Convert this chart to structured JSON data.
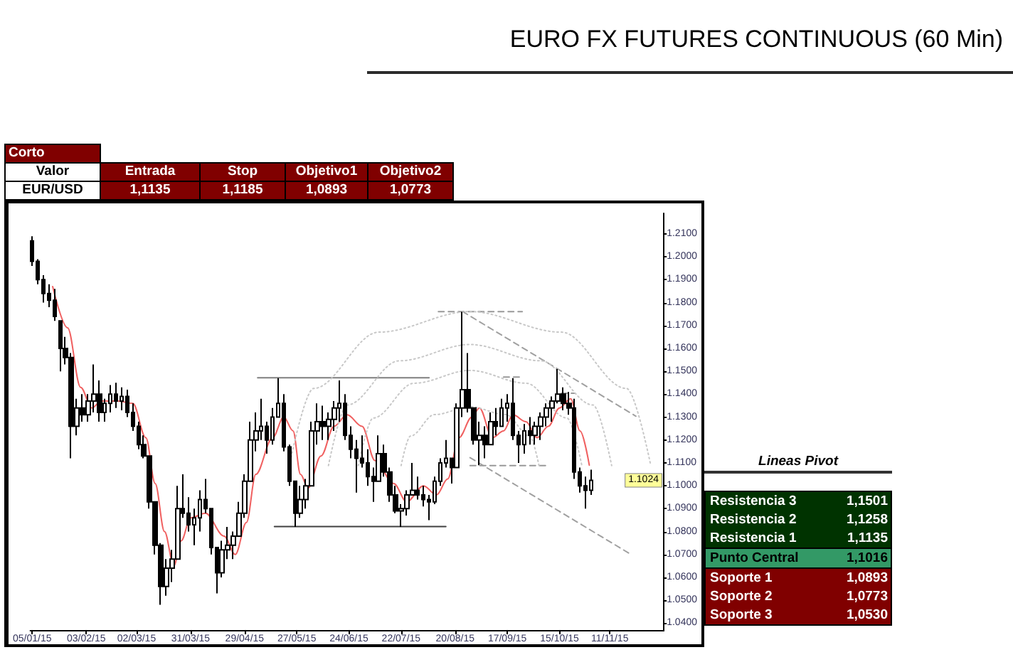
{
  "chart_data": [
    {
      "type": "other",
      "title": "Corto",
      "categories": [
        "Entrada",
        "Stop",
        "Objetivo1",
        "Objetivo2"
      ],
      "value_labels": [
        "1,1135",
        "1,1185",
        "1,0893",
        "1,0773"
      ],
      "color": "#800000",
      "annotations": [
        "Valor",
        "EUR/USD"
      ]
    },
    {
      "type": "candlestick",
      "title": "EURO FX FUTURES CONTINUOUS (60 Min)",
      "color": "#000000",
      "marker": "none",
      "x": [
        "2015-01-05",
        "2015-01-08",
        "2015-01-11",
        "2015-01-14",
        "2015-01-17",
        "2015-01-20",
        "2015-01-23",
        "2015-01-26",
        "2015-01-29",
        "2015-02-01",
        "2015-02-04",
        "2015-02-07",
        "2015-02-10",
        "2015-02-13",
        "2015-02-16",
        "2015-02-19",
        "2015-02-22",
        "2015-02-25",
        "2015-02-28",
        "2015-03-03",
        "2015-03-06",
        "2015-03-09",
        "2015-03-12",
        "2015-03-15",
        "2015-03-18",
        "2015-03-21",
        "2015-03-24",
        "2015-03-27",
        "2015-03-30",
        "2015-04-02",
        "2015-04-05",
        "2015-04-08",
        "2015-04-11",
        "2015-04-14",
        "2015-04-17",
        "2015-04-20",
        "2015-04-23",
        "2015-04-26",
        "2015-04-29",
        "2015-05-02",
        "2015-05-05",
        "2015-05-08",
        "2015-05-11",
        "2015-05-14",
        "2015-05-17",
        "2015-05-20",
        "2015-05-23",
        "2015-05-26",
        "2015-05-29",
        "2015-06-01",
        "2015-06-04",
        "2015-06-07",
        "2015-06-10",
        "2015-06-13",
        "2015-06-16",
        "2015-06-19",
        "2015-06-22",
        "2015-06-25",
        "2015-06-28",
        "2015-07-01",
        "2015-07-04",
        "2015-07-07",
        "2015-07-10",
        "2015-07-13",
        "2015-07-16",
        "2015-07-19",
        "2015-07-22",
        "2015-07-25",
        "2015-07-28",
        "2015-07-31",
        "2015-08-03",
        "2015-08-06",
        "2015-08-09",
        "2015-08-12",
        "2015-08-15",
        "2015-08-18",
        "2015-08-21",
        "2015-08-24",
        "2015-08-27",
        "2015-08-30",
        "2015-09-02",
        "2015-09-05",
        "2015-09-08",
        "2015-09-11",
        "2015-09-14",
        "2015-09-17",
        "2015-09-20",
        "2015-09-23",
        "2015-09-26",
        "2015-09-29",
        "2015-10-02",
        "2015-10-05",
        "2015-10-08",
        "2015-10-11",
        "2015-10-14",
        "2015-10-17",
        "2015-10-20",
        "2015-10-23",
        "2015-10-26",
        "2015-10-29",
        "2015-11-01"
      ],
      "ohlc": [
        [
          1.207,
          1.209,
          1.196,
          1.198
        ],
        [
          1.198,
          1.199,
          1.188,
          1.19
        ],
        [
          1.19,
          1.192,
          1.18,
          1.184
        ],
        [
          1.184,
          1.188,
          1.178,
          1.181
        ],
        [
          1.181,
          1.186,
          1.172,
          1.174
        ],
        [
          1.172,
          1.172,
          1.15,
          1.16
        ],
        [
          1.16,
          1.165,
          1.153,
          1.156
        ],
        [
          1.156,
          1.158,
          1.112,
          1.126
        ],
        [
          1.126,
          1.138,
          1.122,
          1.134
        ],
        [
          1.134,
          1.14,
          1.128,
          1.131
        ],
        [
          1.131,
          1.14,
          1.128,
          1.137
        ],
        [
          1.137,
          1.153,
          1.132,
          1.14
        ],
        [
          1.14,
          1.146,
          1.128,
          1.132
        ],
        [
          1.132,
          1.138,
          1.128,
          1.136
        ],
        [
          1.136,
          1.144,
          1.132,
          1.14
        ],
        [
          1.14,
          1.145,
          1.134,
          1.137
        ],
        [
          1.137,
          1.143,
          1.133,
          1.139
        ],
        [
          1.139,
          1.142,
          1.13,
          1.132
        ],
        [
          1.132,
          1.136,
          1.124,
          1.126
        ],
        [
          1.126,
          1.128,
          1.116,
          1.118
        ],
        [
          1.118,
          1.122,
          1.112,
          1.113
        ],
        [
          1.113,
          1.113,
          1.09,
          1.093
        ],
        [
          1.093,
          1.093,
          1.07,
          1.074
        ],
        [
          1.074,
          1.075,
          1.048,
          1.056
        ],
        [
          1.056,
          1.068,
          1.052,
          1.064
        ],
        [
          1.064,
          1.072,
          1.058,
          1.068
        ],
        [
          1.068,
          1.1,
          1.068,
          1.09
        ],
        [
          1.09,
          1.105,
          1.086,
          1.088
        ],
        [
          1.088,
          1.095,
          1.08,
          1.083
        ],
        [
          1.083,
          1.09,
          1.074,
          1.086
        ],
        [
          1.086,
          1.098,
          1.08,
          1.094
        ],
        [
          1.094,
          1.103,
          1.088,
          1.09
        ],
        [
          1.09,
          1.09,
          1.07,
          1.073
        ],
        [
          1.073,
          1.073,
          1.053,
          1.062
        ],
        [
          1.062,
          1.076,
          1.06,
          1.072
        ],
        [
          1.072,
          1.082,
          1.068,
          1.074
        ],
        [
          1.074,
          1.08,
          1.068,
          1.078
        ],
        [
          1.078,
          1.093,
          1.078,
          1.088
        ],
        [
          1.088,
          1.105,
          1.086,
          1.102
        ],
        [
          1.102,
          1.128,
          1.102,
          1.12
        ],
        [
          1.12,
          1.132,
          1.115,
          1.124
        ],
        [
          1.124,
          1.138,
          1.12,
          1.126
        ],
        [
          1.126,
          1.128,
          1.114,
          1.12
        ],
        [
          1.12,
          1.134,
          1.118,
          1.13
        ],
        [
          1.13,
          1.147,
          1.13,
          1.136
        ],
        [
          1.136,
          1.14,
          1.115,
          1.117
        ],
        [
          1.117,
          1.118,
          1.1,
          1.102
        ],
        [
          1.102,
          1.102,
          1.082,
          1.088
        ],
        [
          1.088,
          1.1,
          1.086,
          1.094
        ],
        [
          1.094,
          1.103,
          1.09,
          1.1
        ],
        [
          1.1,
          1.128,
          1.1,
          1.124
        ],
        [
          1.124,
          1.136,
          1.118,
          1.128
        ],
        [
          1.128,
          1.135,
          1.12,
          1.126
        ],
        [
          1.126,
          1.132,
          1.12,
          1.129
        ],
        [
          1.129,
          1.137,
          1.124,
          1.134
        ],
        [
          1.134,
          1.146,
          1.128,
          1.136
        ],
        [
          1.136,
          1.14,
          1.12,
          1.122
        ],
        [
          1.122,
          1.126,
          1.112,
          1.116
        ],
        [
          1.116,
          1.12,
          1.097,
          1.112
        ],
        [
          1.112,
          1.122,
          1.108,
          1.11
        ],
        [
          1.11,
          1.116,
          1.1,
          1.104
        ],
        [
          1.104,
          1.108,
          1.093,
          1.102
        ],
        [
          1.102,
          1.122,
          1.102,
          1.114
        ],
        [
          1.114,
          1.118,
          1.104,
          1.106
        ],
        [
          1.106,
          1.108,
          1.093,
          1.096
        ],
        [
          1.096,
          1.1,
          1.088,
          1.089
        ],
        [
          1.089,
          1.092,
          1.082,
          1.09
        ],
        [
          1.09,
          1.098,
          1.087,
          1.096
        ],
        [
          1.096,
          1.11,
          1.096,
          1.098
        ],
        [
          1.098,
          1.104,
          1.094,
          1.096
        ],
        [
          1.096,
          1.1,
          1.091,
          1.094
        ],
        [
          1.094,
          1.096,
          1.085,
          1.093
        ],
        [
          1.093,
          1.104,
          1.092,
          1.102
        ],
        [
          1.102,
          1.112,
          1.1,
          1.11
        ],
        [
          1.11,
          1.12,
          1.108,
          1.112
        ],
        [
          1.112,
          1.112,
          1.101,
          1.108
        ],
        [
          1.108,
          1.136,
          1.108,
          1.134
        ],
        [
          1.134,
          1.176,
          1.13,
          1.142
        ],
        [
          1.142,
          1.158,
          1.132,
          1.134
        ],
        [
          1.134,
          1.134,
          1.118,
          1.12
        ],
        [
          1.12,
          1.128,
          1.109,
          1.122
        ],
        [
          1.122,
          1.126,
          1.112,
          1.118
        ],
        [
          1.118,
          1.132,
          1.118,
          1.128
        ],
        [
          1.128,
          1.134,
          1.122,
          1.126
        ],
        [
          1.126,
          1.138,
          1.126,
          1.134
        ],
        [
          1.134,
          1.14,
          1.128,
          1.136
        ],
        [
          1.136,
          1.147,
          1.12,
          1.122
        ],
        [
          1.122,
          1.124,
          1.11,
          1.118
        ],
        [
          1.118,
          1.127,
          1.114,
          1.124
        ],
        [
          1.124,
          1.13,
          1.118,
          1.122
        ],
        [
          1.122,
          1.128,
          1.118,
          1.126
        ],
        [
          1.126,
          1.132,
          1.12,
          1.13
        ],
        [
          1.13,
          1.136,
          1.126,
          1.134
        ],
        [
          1.134,
          1.139,
          1.128,
          1.137
        ],
        [
          1.137,
          1.151,
          1.136,
          1.14
        ],
        [
          1.14,
          1.143,
          1.133,
          1.136
        ],
        [
          1.136,
          1.141,
          1.131,
          1.134
        ],
        [
          1.134,
          1.138,
          1.103,
          1.106
        ],
        [
          1.106,
          1.108,
          1.097,
          1.1
        ],
        [
          1.1,
          1.104,
          1.09,
          1.098
        ],
        [
          1.098,
          1.107,
          1.096,
          1.1024
        ]
      ],
      "series": [
        {
          "type": "line",
          "color": "#f06060",
          "line_style": "solid",
          "x": [
            "2015-01-16",
            "2015-01-24",
            "2015-01-31",
            "2015-02-06",
            "2015-02-11",
            "2015-02-20",
            "2015-02-28",
            "2015-03-07",
            "2015-03-12",
            "2015-03-17",
            "2015-03-22",
            "2015-03-26",
            "2015-03-31",
            "2015-04-08",
            "2015-04-18",
            "2015-04-24",
            "2015-04-30",
            "2015-05-05",
            "2015-05-14",
            "2015-05-20",
            "2015-05-25",
            "2015-05-29",
            "2015-06-02",
            "2015-06-09",
            "2015-06-16",
            "2015-06-23",
            "2015-07-01",
            "2015-07-08",
            "2015-07-18",
            "2015-07-25",
            "2015-08-03",
            "2015-08-10",
            "2015-08-16",
            "2015-08-22",
            "2015-08-29",
            "2015-09-02",
            "2015-09-09",
            "2015-09-15",
            "2015-09-20",
            "2015-09-27",
            "2015-10-03",
            "2015-10-09",
            "2015-10-15",
            "2015-10-21",
            "2015-10-26",
            "2015-10-31"
          ],
          "values": [
            1.187,
            1.169,
            1.143,
            1.134,
            1.137,
            1.137,
            1.136,
            1.121,
            1.101,
            1.08,
            1.065,
            1.076,
            1.086,
            1.088,
            1.078,
            1.07,
            1.084,
            1.105,
            1.121,
            1.13,
            1.124,
            1.105,
            1.099,
            1.113,
            1.126,
            1.131,
            1.126,
            1.111,
            1.101,
            1.093,
            1.1,
            1.096,
            1.103,
            1.121,
            1.13,
            1.134,
            1.121,
            1.124,
            1.131,
            1.128,
            1.121,
            1.126,
            1.134,
            1.138,
            1.124,
            1.109
          ]
        },
        {
          "type": "line",
          "color": "#7f7f7f",
          "line_style": "solid",
          "x": [
            "2015-05-06",
            "2015-08-06"
          ],
          "values": [
            1.1472,
            1.1472
          ]
        },
        {
          "type": "line",
          "color": "#404040",
          "line_style": "solid",
          "x": [
            "2015-05-15",
            "2015-08-15"
          ],
          "values": [
            1.0822,
            1.0822
          ]
        },
        {
          "type": "line",
          "color": "#999999",
          "line_style": "dashed",
          "x": [
            "2015-08-11",
            "2015-09-25"
          ],
          "values": [
            1.1761,
            1.1761
          ]
        },
        {
          "type": "line",
          "color": "#999999",
          "line_style": "dashed",
          "x": [
            "2015-09-15",
            "2015-09-24"
          ],
          "values": [
            1.1475,
            1.1475
          ]
        },
        {
          "type": "line",
          "color": "#999999",
          "line_style": "dashed",
          "x": [
            "2015-10-16",
            "2015-10-23"
          ],
          "values": [
            1.1404,
            1.1404
          ]
        },
        {
          "type": "line",
          "color": "#999999",
          "line_style": "dashed",
          "x": [
            "2015-08-28",
            "2015-10-09"
          ],
          "values": [
            1.1088,
            1.1088
          ]
        },
        {
          "type": "line",
          "color": "#a0a0a0",
          "line_style": "dashed",
          "x": [
            "2015-08-24",
            "2015-11-25"
          ],
          "values": [
            1.1761,
            1.1304
          ]
        },
        {
          "type": "line",
          "color": "#a0a0a0",
          "line_style": "dashed",
          "x": [
            "2015-08-28",
            "2015-11-22"
          ],
          "values": [
            1.1123,
            1.0702
          ]
        },
        {
          "type": "line",
          "color": "#c8c8c8",
          "line_style": "dotted",
          "x": [
            "2015-05-23",
            "2015-06-05",
            "2015-07-10",
            "2015-08-28",
            "2015-10-16",
            "2015-11-20",
            "2015-12-03"
          ],
          "values": [
            1.1088,
            1.1425,
            1.1671,
            1.1761,
            1.1671,
            1.1425,
            1.1088
          ]
        },
        {
          "type": "line",
          "color": "#c8c8c8",
          "line_style": "dotted",
          "x": [
            "2015-06-13",
            "2015-06-23",
            "2015-07-21",
            "2015-08-28",
            "2015-10-05",
            "2015-11-02",
            "2015-11-12"
          ],
          "values": [
            1.1088,
            1.1353,
            1.1546,
            1.1617,
            1.1546,
            1.1353,
            1.1088
          ]
        },
        {
          "type": "line",
          "color": "#c8c8c8",
          "line_style": "dotted",
          "x": [
            "2015-06-29",
            "2015-07-07",
            "2015-07-29",
            "2015-08-28",
            "2015-09-27",
            "2015-10-19",
            "2015-10-27"
          ],
          "values": [
            1.1088,
            1.1296,
            1.1448,
            1.1504,
            1.1448,
            1.1296,
            1.1088
          ]
        },
        {
          "type": "line",
          "color": "#c8c8c8",
          "line_style": "dotted",
          "x": [
            "2015-07-22",
            "2015-07-27",
            "2015-08-09",
            "2015-08-28",
            "2015-09-16",
            "2015-09-29",
            "2015-10-04"
          ],
          "values": [
            1.1088,
            1.1217,
            1.1311,
            1.1345,
            1.1311,
            1.1217,
            1.1088
          ]
        }
      ],
      "xlim": [
        "2015-01-04",
        "2015-12-10"
      ],
      "xticks": [
        {
          "value": "2015-01-05",
          "label": "05/01/15"
        },
        {
          "value": "2015-02-03",
          "label": "03/02/15"
        },
        {
          "value": "2015-03-02",
          "label": "02/03/15"
        },
        {
          "value": "2015-03-31",
          "label": "31/03/15"
        },
        {
          "value": "2015-04-29",
          "label": "29/04/15"
        },
        {
          "value": "2015-05-27",
          "label": "27/05/15"
        },
        {
          "value": "2015-06-24",
          "label": "24/06/15"
        },
        {
          "value": "2015-07-22",
          "label": "22/07/15"
        },
        {
          "value": "2015-08-20",
          "label": "20/08/15"
        },
        {
          "value": "2015-09-17",
          "label": "17/09/15"
        },
        {
          "value": "2015-10-15",
          "label": "15/10/15"
        },
        {
          "value": "2015-11-11",
          "label": "11/11/15"
        }
      ],
      "ylim": [
        1.037,
        1.219
      ],
      "yticks": [
        {
          "value": 1.04,
          "label": "1.0400"
        },
        {
          "value": 1.05,
          "label": "1.0500"
        },
        {
          "value": 1.06,
          "label": "1.0600"
        },
        {
          "value": 1.07,
          "label": "1.0700"
        },
        {
          "value": 1.08,
          "label": "1.0800"
        },
        {
          "value": 1.09,
          "label": "1.0900"
        },
        {
          "value": 1.1,
          "label": "1.1000"
        },
        {
          "value": 1.11,
          "label": "1.1100"
        },
        {
          "value": 1.12,
          "label": "1.1200"
        },
        {
          "value": 1.13,
          "label": "1.1300"
        },
        {
          "value": 1.14,
          "label": "1.1400"
        },
        {
          "value": 1.15,
          "label": "1.1500"
        },
        {
          "value": 1.16,
          "label": "1.1600"
        },
        {
          "value": 1.17,
          "label": "1.1700"
        },
        {
          "value": 1.18,
          "label": "1.1800"
        },
        {
          "value": 1.19,
          "label": "1.1900"
        },
        {
          "value": 1.2,
          "label": "1.2000"
        },
        {
          "value": 1.21,
          "label": "1.2100"
        }
      ],
      "annotations": [
        {
          "text": "1.1024",
          "y": 1.1024
        }
      ]
    },
    {
      "type": "other",
      "title": "Lineas Pivot",
      "categories": [
        "Resistencia 3",
        "Resistencia 2",
        "Resistencia 1",
        "Punto Central",
        "Soporte 1",
        "Soporte 2",
        "Soporte 3"
      ],
      "value_labels": [
        "1,1501",
        "1,1258",
        "1,1135",
        "1,1016",
        "1,0893",
        "1,0773",
        "1,0530"
      ],
      "colors": [
        "#003300",
        "#003300",
        "#003300",
        "#339966",
        "#800000",
        "#800000",
        "#800000"
      ]
    }
  ]
}
